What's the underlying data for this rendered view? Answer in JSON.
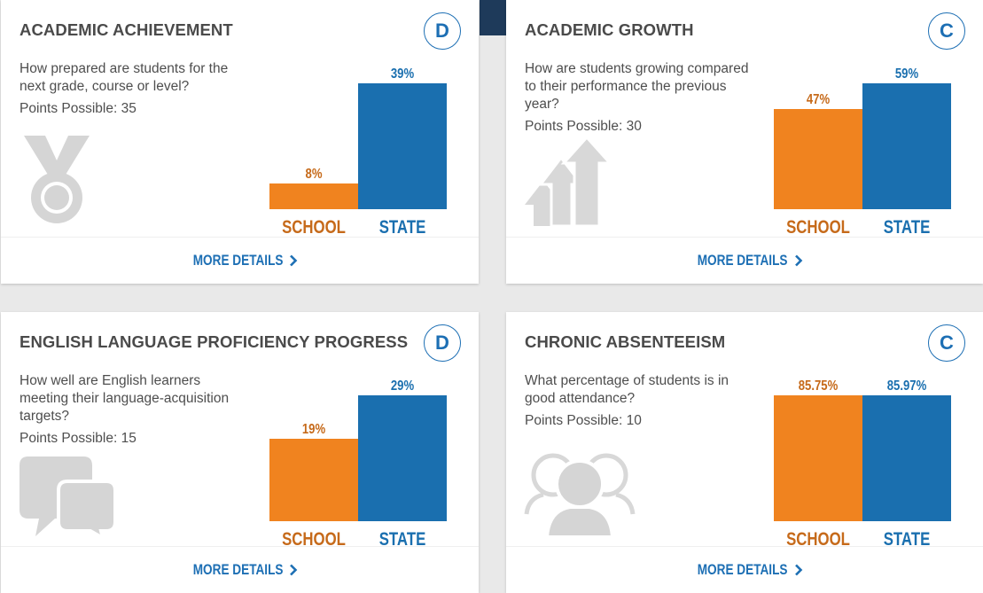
{
  "more_details_label": "MORE DETAILS",
  "colors": {
    "school": "#f0831f",
    "state": "#1a6faf",
    "accent": "#1d6fb4"
  },
  "cards": [
    {
      "title": "ACADEMIC ACHIEVEMENT",
      "grade": "D",
      "question": "How prepared are students for the next grade, course or level?",
      "points": "Points Possible: 35",
      "icon": "medal-icon",
      "chart_data": {
        "type": "bar",
        "categories": [
          "SCHOOL",
          "STATE"
        ],
        "values": [
          8,
          39
        ],
        "value_labels": [
          "8%",
          "39%"
        ],
        "ylim": [
          0,
          39
        ]
      }
    },
    {
      "title": "ACADEMIC GROWTH",
      "grade": "C",
      "question": "How are students growing compared to their performance the previous year?",
      "points": "Points Possible: 30",
      "icon": "growth-arrows-icon",
      "chart_data": {
        "type": "bar",
        "categories": [
          "SCHOOL",
          "STATE"
        ],
        "values": [
          47,
          59
        ],
        "value_labels": [
          "47%",
          "59%"
        ],
        "ylim": [
          0,
          59
        ]
      }
    },
    {
      "title": "ENGLISH LANGUAGE PROFICIENCY PROGRESS",
      "grade": "D",
      "question": "How well are English learners meeting their language-acquisition targets?",
      "points": "Points Possible: 15",
      "icon": "speech-bubbles-icon",
      "chart_data": {
        "type": "bar",
        "categories": [
          "SCHOOL",
          "STATE"
        ],
        "values": [
          19,
          29
        ],
        "value_labels": [
          "19%",
          "29%"
        ],
        "ylim": [
          0,
          29
        ]
      }
    },
    {
      "title": "CHRONIC ABSENTEEISM",
      "grade": "C",
      "question": "What percentage of students is in good attendance?",
      "points": "Points Possible: 10",
      "icon": "group-icon",
      "chart_data": {
        "type": "bar",
        "categories": [
          "SCHOOL",
          "STATE"
        ],
        "values": [
          85.75,
          85.97
        ],
        "value_labels": [
          "85.75%",
          "85.97%"
        ],
        "ylim": [
          0,
          85.97
        ]
      }
    }
  ]
}
